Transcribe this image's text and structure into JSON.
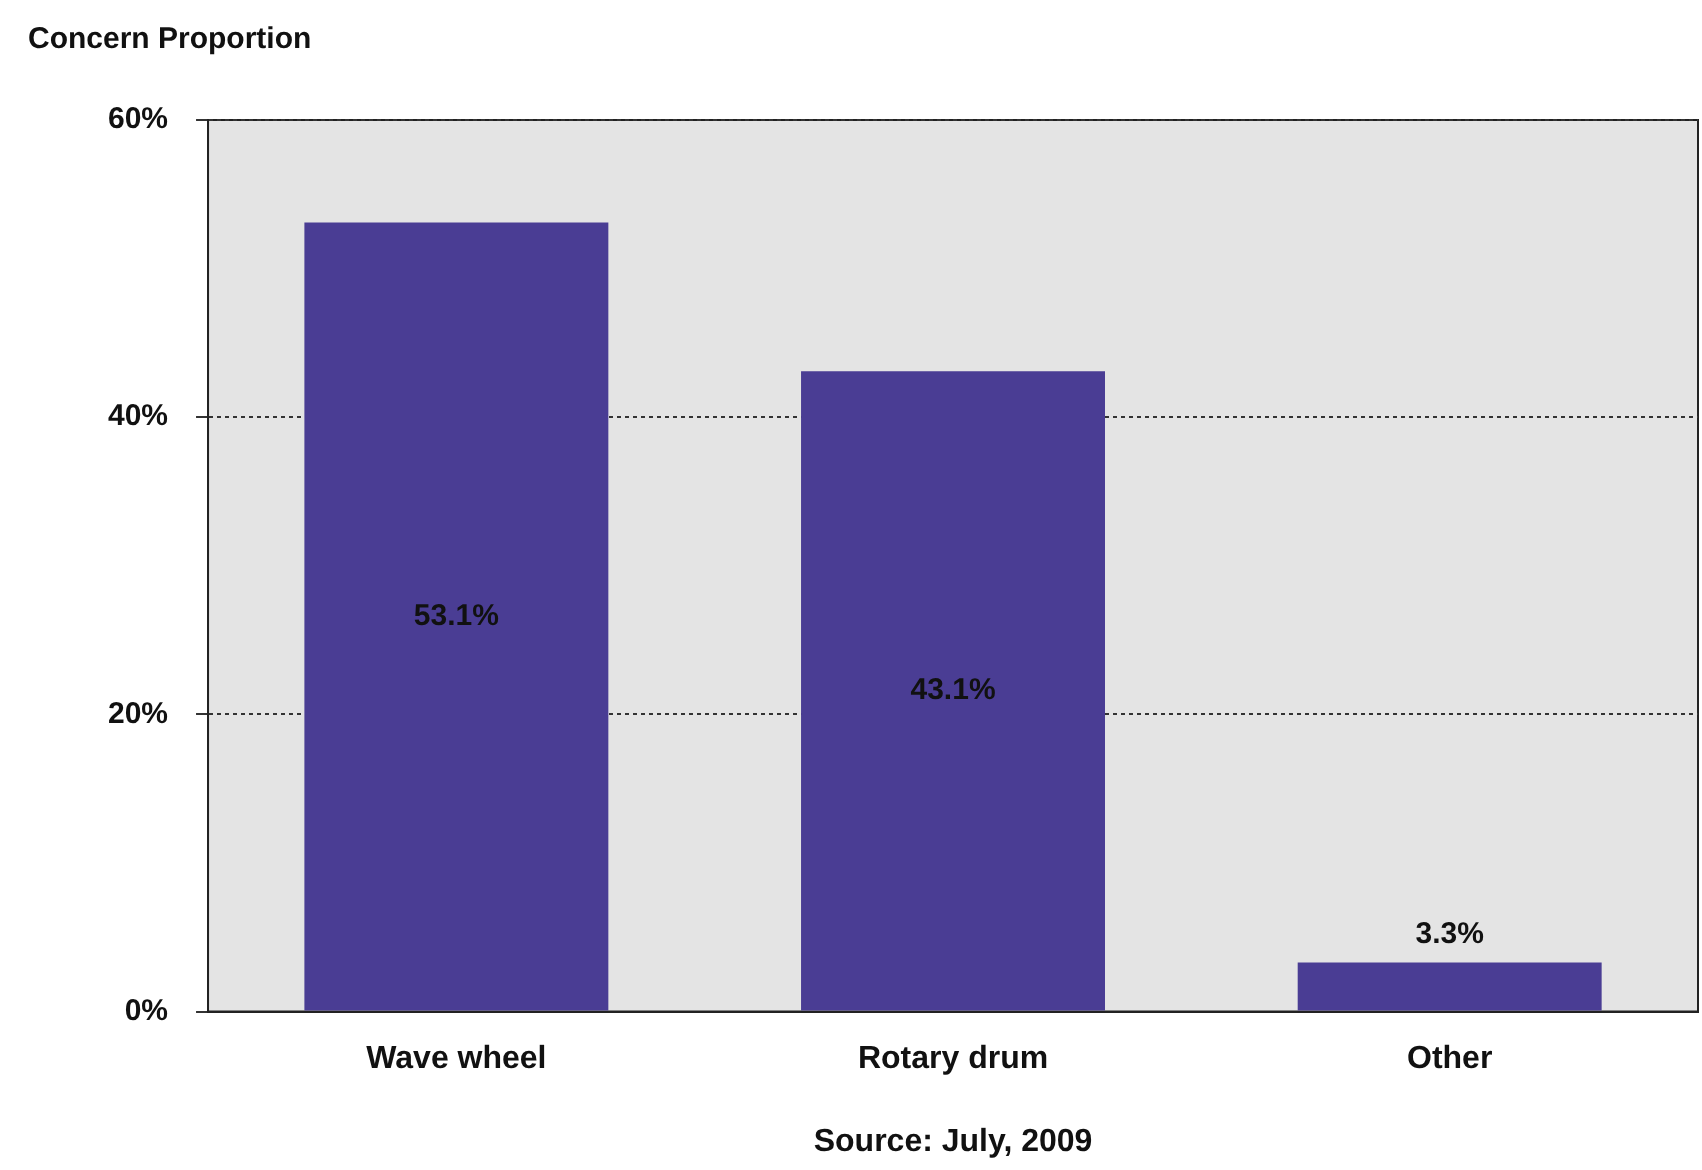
{
  "chart_data": {
    "type": "bar",
    "ylabel": "Concern Proportion",
    "categories": [
      "Wave wheel",
      "Rotary drum",
      "Other"
    ],
    "values": [
      53.1,
      43.1,
      3.3
    ],
    "value_labels": [
      "53.1%",
      "43.1%",
      "3.3%"
    ],
    "color": "#4a3d94",
    "ylim": [
      0,
      60
    ],
    "yticks": [
      {
        "value": 0,
        "label": "0%"
      },
      {
        "value": 20,
        "label": "20%"
      },
      {
        "value": 40,
        "label": "40%"
      },
      {
        "value": 60,
        "label": "60%"
      }
    ],
    "grid": "y",
    "line_style": "dotted",
    "legend": false,
    "annotations": [
      "Source: July, 2009"
    ]
  }
}
